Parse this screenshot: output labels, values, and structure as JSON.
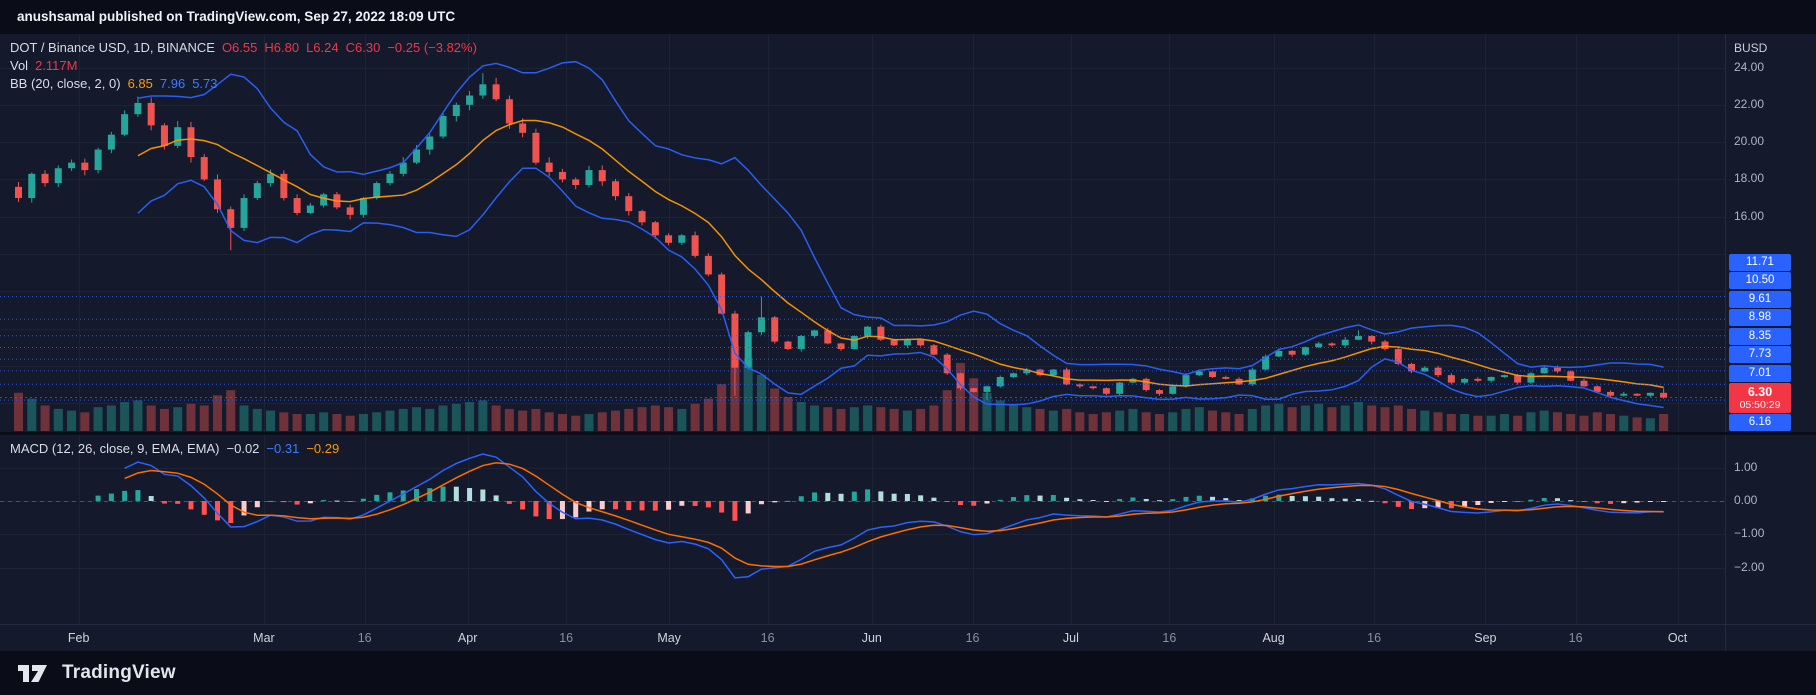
{
  "header": {
    "publish_text": "anushsamal published on TradingView.com, Sep 27, 2022 18:09 UTC"
  },
  "footer": {
    "brand": "TradingView"
  },
  "legend": {
    "symbol": "DOT / Binance USD, 1D, BINANCE",
    "ohlc": {
      "o": "O6.55",
      "h": "H6.80",
      "l": "L6.24",
      "c": "C6.30",
      "change": "−0.25 (−3.82%)"
    },
    "volume": {
      "label": "Vol",
      "value": "2.117M"
    },
    "bb": {
      "label": "BB (20, close, 2, 0)",
      "basis": "6.85",
      "upper": "7.96",
      "lower": "5.73"
    },
    "macd": {
      "label": "MACD (12, 26, close, 9, EMA, EMA)",
      "hist": "−0.02",
      "macd": "−0.31",
      "signal": "−0.29"
    }
  },
  "axis": {
    "currency": "BUSD",
    "last_price": {
      "value": "6.30",
      "countdown": "05:50:29"
    },
    "time_ticks": [
      {
        "label": "Feb",
        "f": 0.0456
      },
      {
        "label": "Mar",
        "f": 0.153
      },
      {
        "label": "16",
        "f": 0.2114
      },
      {
        "label": "Apr",
        "f": 0.2711
      },
      {
        "label": "16",
        "f": 0.3282
      },
      {
        "label": "May",
        "f": 0.3879
      },
      {
        "label": "16",
        "f": 0.445
      },
      {
        "label": "Jun",
        "f": 0.5054
      },
      {
        "label": "16",
        "f": 0.5638
      },
      {
        "label": "Jul",
        "f": 0.6208
      },
      {
        "label": "16",
        "f": 0.6779
      },
      {
        "label": "Aug",
        "f": 0.7383
      },
      {
        "label": "16",
        "f": 0.7966
      },
      {
        "label": "Sep",
        "f": 0.8611
      },
      {
        "label": "16",
        "f": 0.9134
      },
      {
        "label": "Oct",
        "f": 0.9725
      }
    ]
  },
  "colors": {
    "up": "#26a69a",
    "down": "#ef5350",
    "band": "#2962ff",
    "basis": "#ff9800",
    "macd": "#2962ff",
    "signal": "#ff6d00",
    "level": "#2962ff",
    "last": "#f23645",
    "hist_up": "#26a69a",
    "hist_up_weak": "#b2dfdb",
    "hist_dn": "#ff5252",
    "hist_dn_weak": "#fccbcd",
    "grid": "#1c2334",
    "badge_blue": "#2962ff",
    "badge_red": "#f23645"
  },
  "chart_data": {
    "type": "candlestick",
    "title": "DOT / Binance USD, 1D, BINANCE",
    "symbol": "DOT/BUSD",
    "interval": "1D",
    "x_range": [
      "2022-01-23",
      "2022-09-27"
    ],
    "sample_step_days": 2,
    "first_open": 17.6,
    "closes": [
      17.0,
      18.3,
      17.8,
      18.6,
      18.9,
      18.5,
      19.6,
      20.4,
      21.5,
      22.1,
      20.9,
      19.8,
      20.8,
      19.2,
      18.0,
      16.4,
      15.4,
      17.0,
      17.8,
      18.3,
      17.0,
      16.2,
      16.6,
      17.2,
      16.5,
      16.1,
      17.0,
      17.8,
      18.3,
      18.9,
      19.6,
      20.3,
      21.4,
      22.0,
      22.5,
      23.1,
      22.3,
      21.0,
      20.5,
      18.9,
      18.4,
      18.0,
      17.7,
      18.5,
      17.9,
      17.1,
      16.3,
      15.7,
      15.0,
      14.6,
      15.0,
      13.9,
      12.9,
      10.8,
      7.9,
      9.8,
      10.6,
      9.3,
      8.9,
      9.6,
      9.9,
      9.2,
      8.9,
      9.6,
      10.1,
      9.4,
      9.1,
      9.4,
      9.1,
      8.6,
      7.6,
      6.8,
      6.6,
      6.9,
      7.4,
      7.6,
      7.8,
      7.5,
      7.8,
      7.0,
      6.9,
      6.8,
      6.5,
      7.1,
      7.3,
      6.7,
      6.5,
      6.9,
      7.5,
      7.7,
      7.4,
      7.3,
      7.0,
      7.8,
      8.5,
      8.8,
      8.6,
      9.0,
      9.2,
      9.1,
      9.4,
      9.6,
      9.3,
      8.9,
      8.1,
      7.7,
      7.9,
      7.5,
      7.1,
      7.3,
      7.2,
      7.4,
      7.5,
      7.1,
      7.6,
      7.9,
      7.7,
      7.2,
      6.9,
      6.6,
      6.4,
      6.5,
      6.4,
      6.55,
      6.3
    ],
    "volumes_rel": [
      0.45,
      0.38,
      0.3,
      0.26,
      0.24,
      0.22,
      0.28,
      0.3,
      0.34,
      0.36,
      0.3,
      0.26,
      0.28,
      0.32,
      0.3,
      0.42,
      0.48,
      0.3,
      0.26,
      0.24,
      0.22,
      0.2,
      0.2,
      0.22,
      0.2,
      0.18,
      0.2,
      0.22,
      0.24,
      0.26,
      0.28,
      0.26,
      0.3,
      0.32,
      0.34,
      0.36,
      0.3,
      0.26,
      0.24,
      0.26,
      0.22,
      0.2,
      0.18,
      0.2,
      0.22,
      0.24,
      0.26,
      0.28,
      0.3,
      0.28,
      0.26,
      0.32,
      0.38,
      0.55,
      1.0,
      0.85,
      0.66,
      0.5,
      0.4,
      0.34,
      0.3,
      0.28,
      0.26,
      0.28,
      0.3,
      0.28,
      0.26,
      0.24,
      0.26,
      0.3,
      0.48,
      0.8,
      0.62,
      0.45,
      0.36,
      0.3,
      0.28,
      0.26,
      0.24,
      0.26,
      0.22,
      0.2,
      0.22,
      0.24,
      0.26,
      0.22,
      0.2,
      0.22,
      0.26,
      0.28,
      0.24,
      0.22,
      0.2,
      0.26,
      0.3,
      0.32,
      0.28,
      0.3,
      0.32,
      0.28,
      0.3,
      0.34,
      0.3,
      0.28,
      0.3,
      0.26,
      0.24,
      0.22,
      0.2,
      0.2,
      0.18,
      0.18,
      0.2,
      0.18,
      0.22,
      0.24,
      0.22,
      0.2,
      0.18,
      0.22,
      0.2,
      0.18,
      0.16,
      0.15,
      0.2
    ],
    "wick_overrides": {
      "16": {
        "low": 14.2
      },
      "35": {
        "high": 23.7
      },
      "54": {
        "low": 6.4
      },
      "56": {
        "high": 11.71
      },
      "73": {
        "low": 6.16
      },
      "101": {
        "high": 9.9
      }
    },
    "last_candle": {
      "open": 6.55,
      "high": 6.8,
      "low": 6.24,
      "close": 6.3
    },
    "levels": [
      11.71,
      10.5,
      9.61,
      8.98,
      8.35,
      7.73,
      7.01,
      6.16
    ],
    "price_axis": {
      "min": 4.45,
      "max": 25.8,
      "ticks": [
        24,
        22,
        20,
        18,
        16
      ]
    },
    "macd_axis": {
      "ticks": [
        1,
        0,
        -1,
        -2
      ]
    },
    "indicators": {
      "bollinger": {
        "period_points": 10,
        "stdev": 2
      },
      "macd": {
        "fast": 6,
        "slow": 13,
        "signal": 5
      }
    }
  }
}
